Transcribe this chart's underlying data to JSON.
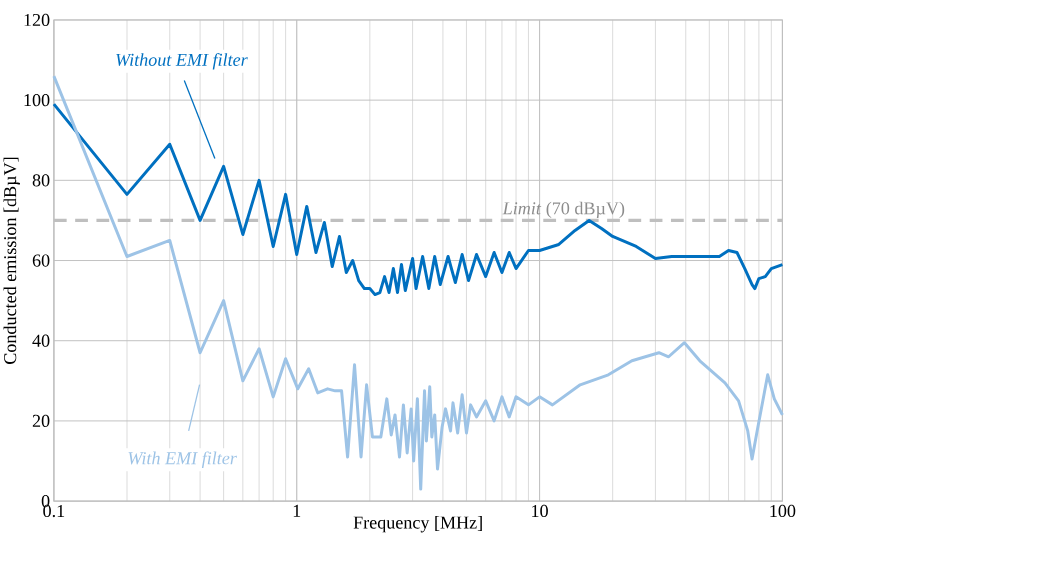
{
  "chart_data": {
    "type": "line",
    "xlabel": "Frequency [MHz]",
    "ylabel": "Conducted emission [dBµV]",
    "log": "x",
    "grid": true,
    "xlim": [
      0.1,
      100
    ],
    "ylim": [
      0,
      120
    ],
    "xticks": [
      {
        "value": 0.1,
        "label": "0.1"
      },
      {
        "value": 1,
        "label": "1"
      },
      {
        "value": 10,
        "label": "10"
      },
      {
        "value": 100,
        "label": "100"
      }
    ],
    "yticks": [
      0,
      20,
      40,
      60,
      80,
      100,
      120
    ],
    "ref_lines": [
      {
        "axis": "y",
        "value": 70,
        "label": "*Limit* (70 dBµV)",
        "color": "#bfbfbf",
        "line_style": "dashed"
      }
    ],
    "series": [
      {
        "name": "Without EMI filter",
        "color": "#0070c0",
        "x": [
          0.1,
          0.2,
          0.3,
          0.4,
          0.5,
          0.6,
          0.7,
          0.8,
          0.9,
          1.0,
          1.1,
          1.2,
          1.3,
          1.4,
          1.5,
          1.6,
          1.7,
          1.8,
          1.9,
          2.0,
          2.1,
          2.2,
          2.3,
          2.4,
          2.5,
          2.6,
          2.7,
          2.8,
          3.0,
          3.1,
          3.3,
          3.5,
          3.7,
          3.9,
          4.2,
          4.5,
          4.8,
          5.1,
          5.5,
          6,
          6.5,
          7,
          7.5,
          8,
          9,
          10,
          12,
          14,
          16,
          18,
          20,
          25,
          30,
          35,
          40,
          50,
          55,
          60,
          65,
          70,
          75,
          77,
          80,
          85,
          90,
          100
        ],
        "values": [
          99,
          76.5,
          89,
          70,
          83.5,
          66.5,
          80,
          63.5,
          76.5,
          61.5,
          73.5,
          62,
          69.5,
          58.5,
          66,
          57,
          60,
          55,
          53,
          53,
          51.5,
          52,
          56,
          52,
          58,
          52,
          59,
          52.5,
          60.5,
          53,
          61,
          53,
          61,
          54,
          61,
          54.5,
          61.5,
          55,
          61.5,
          56,
          62,
          57,
          62,
          58,
          62.5,
          62.5,
          64,
          67.5,
          70,
          68,
          66,
          63.5,
          60.5,
          61,
          61,
          61,
          61,
          62.5,
          62,
          58,
          54,
          53,
          55.5,
          56,
          58,
          59
        ]
      },
      {
        "name": "With EMI filter",
        "color": "#9dc3e6",
        "x": [
          0.1,
          0.2,
          0.3,
          0.4,
          0.5,
          0.6,
          0.7,
          0.8,
          0.9,
          1.01,
          1.12,
          1.22,
          1.34,
          1.44,
          1.53,
          1.62,
          1.73,
          1.84,
          1.94,
          2.05,
          2.22,
          2.35,
          2.45,
          2.54,
          2.65,
          2.75,
          2.85,
          2.96,
          3.03,
          3.14,
          3.24,
          3.36,
          3.42,
          3.53,
          3.6,
          3.7,
          3.8,
          3.97,
          4.1,
          4.3,
          4.4,
          4.6,
          4.8,
          5.0,
          5.2,
          5.5,
          6,
          6.5,
          7,
          7.5,
          8,
          9,
          10,
          11.3,
          14.7,
          19.2,
          24,
          31,
          34,
          39.5,
          45.7,
          58,
          66,
          72,
          75,
          79,
          87,
          92.6,
          100
        ],
        "values": [
          106,
          61,
          65,
          37,
          50,
          30,
          38,
          26,
          35.5,
          28,
          33,
          27,
          28,
          27.5,
          27.5,
          11,
          34,
          11,
          29,
          16,
          16,
          25.5,
          16.5,
          21.5,
          11,
          24,
          12,
          23,
          10,
          25.5,
          3,
          27.5,
          15,
          28.5,
          16,
          21.5,
          8,
          18.5,
          23,
          17.5,
          24.5,
          17,
          26.5,
          17,
          24,
          21,
          25,
          20,
          26,
          21,
          26,
          24,
          26,
          24,
          29,
          31.5,
          35,
          37,
          36,
          39.5,
          35,
          29.5,
          25,
          17.5,
          10.5,
          18,
          31.5,
          25.5,
          21.5
        ]
      }
    ]
  }
}
